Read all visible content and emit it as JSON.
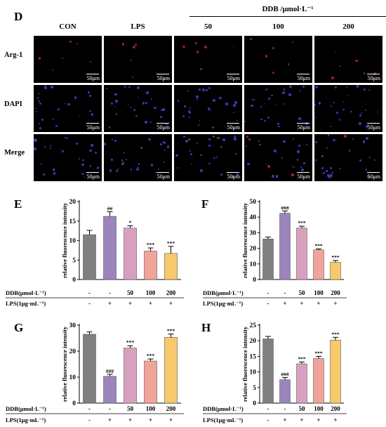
{
  "figure": {
    "panel_label": "D",
    "treatment_header": "DDB /μmol·L⁻¹",
    "columns": [
      "CON",
      "LPS",
      "50",
      "100",
      "200"
    ],
    "rows": [
      "Arg-1",
      "DAPI",
      "Merge"
    ],
    "scale_bar": "50μm"
  },
  "chart_data": [
    {
      "type": "bar",
      "panel": "E",
      "ylabel": "relative fluorescence intensity",
      "ylim": [
        0,
        20
      ],
      "yticks": [
        0,
        5,
        10,
        15,
        20
      ],
      "categories": [
        "CON",
        "LPS",
        "DDB 50",
        "DDB 100",
        "DDB 200"
      ],
      "values": [
        11.5,
        16.2,
        13.2,
        7.3,
        6.7
      ],
      "errors": [
        1.1,
        1.2,
        0.6,
        0.8,
        1.8
      ],
      "annotations": [
        "",
        "##",
        "*",
        "***",
        "***"
      ],
      "colors": [
        "#808080",
        "#9c84bd",
        "#d8a0bf",
        "#f2a39a",
        "#f7c96b"
      ]
    },
    {
      "type": "bar",
      "panel": "F",
      "ylabel": "relative fluorescence intensity",
      "ylim": [
        0,
        50
      ],
      "yticks": [
        0,
        10,
        20,
        30,
        40,
        50
      ],
      "categories": [
        "CON",
        "LPS",
        "DDB 50",
        "DDB 100",
        "DDB 200"
      ],
      "values": [
        26,
        42.5,
        33,
        19,
        11
      ],
      "errors": [
        1.2,
        1.5,
        1.2,
        0.6,
        1.2
      ],
      "annotations": [
        "",
        "###",
        "***",
        "***",
        "***"
      ],
      "colors": [
        "#808080",
        "#9c84bd",
        "#d8a0bf",
        "#f2a39a",
        "#f7c96b"
      ]
    },
    {
      "type": "bar",
      "panel": "G",
      "ylabel": "relative fluorescence intensity",
      "ylim": [
        0,
        30
      ],
      "yticks": [
        0,
        10,
        20,
        30
      ],
      "categories": [
        "CON",
        "LPS",
        "DDB 50",
        "DDB 100",
        "DDB 200"
      ],
      "values": [
        26.5,
        10.3,
        21.2,
        16.2,
        25.3
      ],
      "errors": [
        0.9,
        0.8,
        0.9,
        0.8,
        1.3
      ],
      "annotations": [
        "",
        "###",
        "***",
        "***",
        "***"
      ],
      "colors": [
        "#808080",
        "#9c84bd",
        "#d8a0bf",
        "#f2a39a",
        "#f7c96b"
      ]
    },
    {
      "type": "bar",
      "panel": "H",
      "ylabel": "relative fluorescence intensity",
      "ylim": [
        0,
        25
      ],
      "yticks": [
        0,
        5,
        10,
        15,
        20,
        25
      ],
      "categories": [
        "CON",
        "LPS",
        "DDB 50",
        "DDB 100",
        "DDB 200"
      ],
      "values": [
        20.6,
        7.5,
        12.6,
        14.3,
        20.2
      ],
      "errors": [
        0.8,
        0.7,
        0.6,
        0.7,
        0.9
      ],
      "annotations": [
        "",
        "###",
        "***",
        "***",
        "***"
      ],
      "colors": [
        "#808080",
        "#9c84bd",
        "#d8a0bf",
        "#f2a39a",
        "#f7c96b"
      ]
    }
  ],
  "treatment_table": {
    "ddb_label": "DDB(μmol·L⁻¹)",
    "lps_label": "LPS(1μg·mL⁻¹)",
    "ddb_values": [
      "-",
      "-",
      "50",
      "100",
      "200"
    ],
    "lps_values": [
      "-",
      "+",
      "+",
      "+",
      "+"
    ]
  }
}
